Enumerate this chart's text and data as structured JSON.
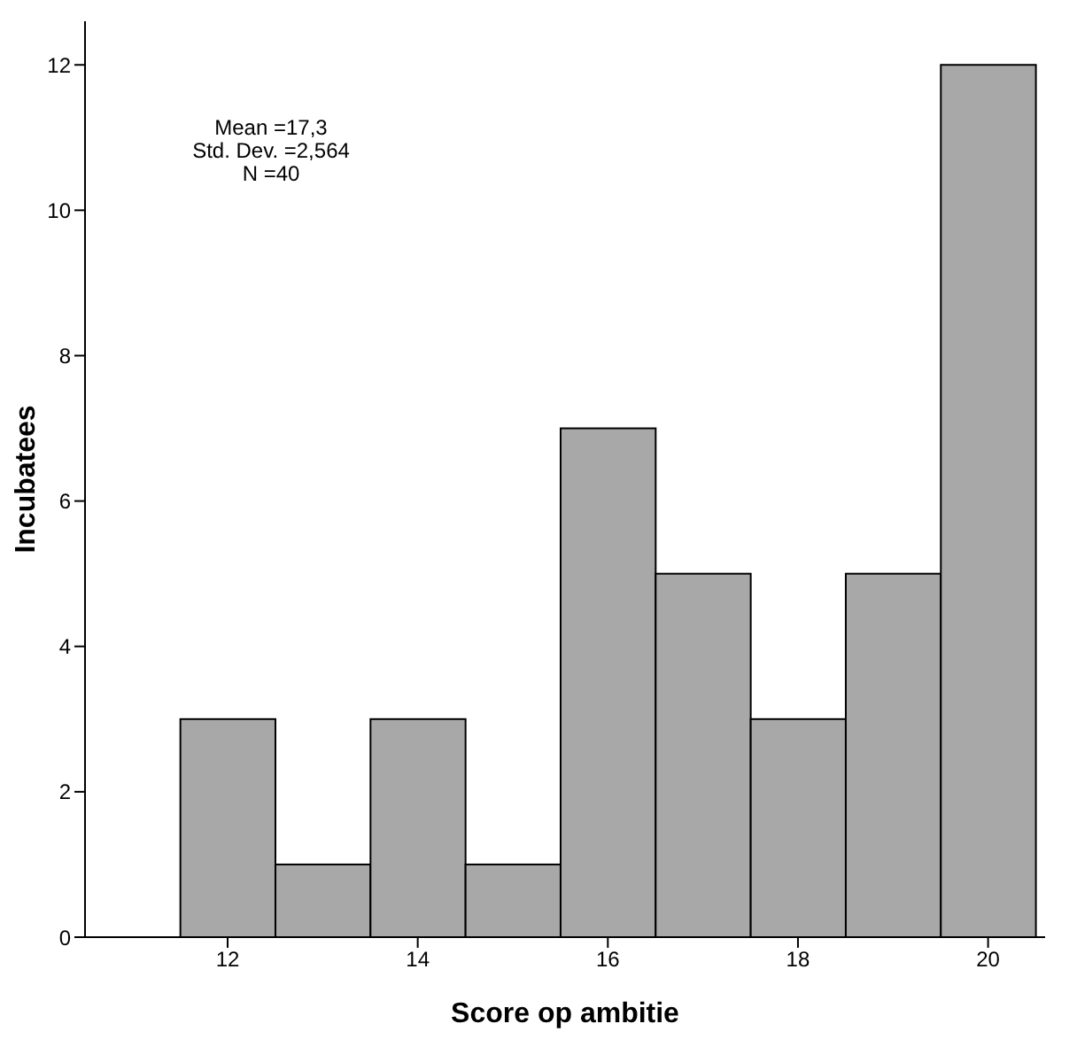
{
  "chart_data": {
    "type": "histogram",
    "xlabel": "Score op ambitie",
    "ylabel": "Incubatees",
    "bins": [
      11.5,
      12.5,
      13.5,
      14.5,
      15.5,
      16.5,
      17.5,
      18.5,
      19.5,
      20.5
    ],
    "values": [
      3,
      1,
      3,
      1,
      7,
      5,
      3,
      5,
      12
    ],
    "color": "#a8a8a8",
    "xlim": [
      10.5,
      20.6
    ],
    "xticks": [
      12,
      14,
      16,
      18,
      20
    ],
    "ylim": [
      0,
      12.6
    ],
    "yticks": [
      0,
      2,
      4,
      6,
      8,
      10,
      12
    ],
    "grid": false,
    "legend": false,
    "annotations": [
      "Mean =17,3",
      "Std. Dev. =2,564",
      "N =40"
    ]
  }
}
